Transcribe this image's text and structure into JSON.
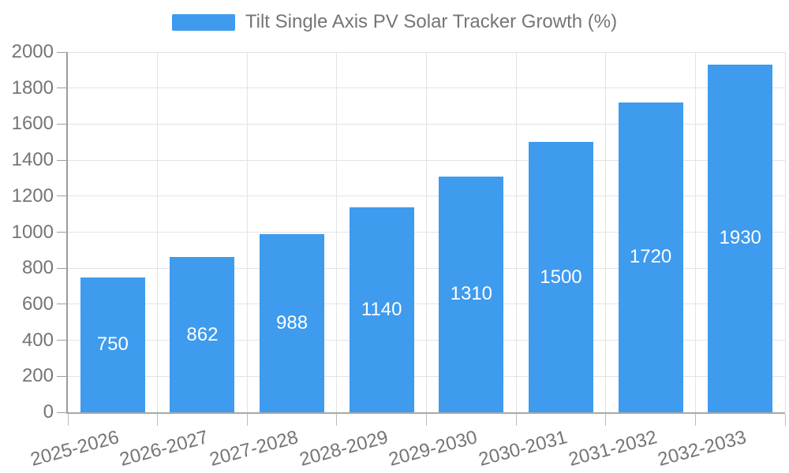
{
  "chart_data": {
    "type": "bar",
    "title": "Tilt Single Axis PV Solar Tracker Growth (%)",
    "categories": [
      "2025-2026",
      "2026-2027",
      "2027-2028",
      "2028-2029",
      "2029-2030",
      "2030-2031",
      "2031-2032",
      "2032-2033"
    ],
    "series": [
      {
        "name": "Tilt Single Axis PV Solar Tracker Growth (%)",
        "values": [
          750,
          862,
          988,
          1140,
          1310,
          1500,
          1720,
          1930
        ]
      }
    ],
    "xlabel": "",
    "ylabel": "",
    "ylim": [
      0,
      2000
    ],
    "ytick_step": 200,
    "ytick_labels": [
      "0",
      "200",
      "400",
      "600",
      "800",
      "1000",
      "1200",
      "1400",
      "1600",
      "1800",
      "2000"
    ],
    "grid": true,
    "legend_position": "top-center",
    "bar_value_labels": "inside-middle",
    "colors": {
      "bar": "#3e9bee",
      "bar_label": "#ffffff",
      "axis_text": "#757575",
      "axis_line": "#9e9e9e",
      "gridline": "#e3e3e3"
    }
  }
}
